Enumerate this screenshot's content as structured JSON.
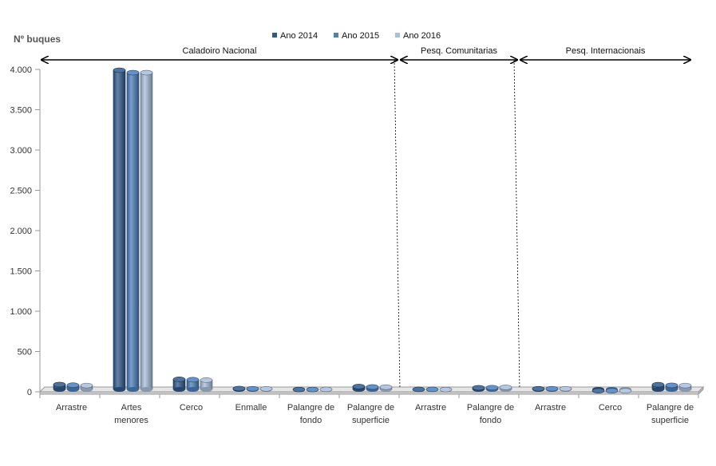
{
  "chart_data": {
    "type": "bar",
    "title": "",
    "xlabel": "",
    "ylabel": "Nº  buques",
    "ylim": [
      0,
      4000
    ],
    "yticks": [
      0,
      500,
      1000,
      1500,
      2000,
      2500,
      3000,
      3500,
      4000
    ],
    "ytick_labels": [
      "0",
      "500",
      "1.000",
      "1.500",
      "2.000",
      "2.500",
      "3.000",
      "3.500",
      "4.000"
    ],
    "grid": false,
    "legend_position": "top-center",
    "categories": [
      [
        "Arrastre"
      ],
      [
        "Artes",
        "menores"
      ],
      [
        "Cerco"
      ],
      [
        "Enmalle"
      ],
      [
        "Palangre de",
        "fondo"
      ],
      [
        "Palangre de",
        "superficie"
      ],
      [
        "Arrastre"
      ],
      [
        "Palangre de",
        "fondo"
      ],
      [
        "Arrastre"
      ],
      [
        "Cerco"
      ],
      [
        "Palangre de",
        "superficie"
      ]
    ],
    "series": [
      {
        "name": "Ano 2014",
        "color": "#2f5a8c",
        "values": [
          90,
          3990,
          155,
          40,
          28,
          65,
          30,
          50,
          38,
          13,
          88
        ]
      },
      {
        "name": "Ano 2015",
        "color": "#4b80bd",
        "values": [
          82,
          3960,
          150,
          38,
          28,
          60,
          30,
          52,
          38,
          13,
          80
        ]
      },
      {
        "name": "Ano 2016",
        "color": "#a9bedb",
        "values": [
          78,
          3960,
          145,
          37,
          30,
          58,
          28,
          55,
          38,
          13,
          78
        ]
      }
    ],
    "regions": [
      {
        "label": "Caladoiro Nacional",
        "from": 0,
        "to": 5
      },
      {
        "label": "Pesq. Comunitarias",
        "from": 6,
        "to": 7
      },
      {
        "label": "Pesq. Internacionais",
        "from": 8,
        "to": 10
      }
    ]
  }
}
